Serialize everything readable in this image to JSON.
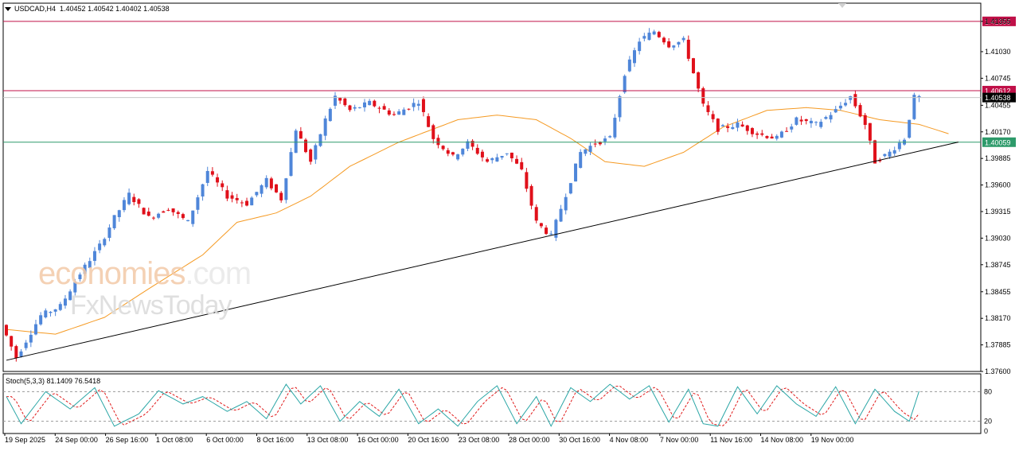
{
  "header": {
    "symbol": "USDCAD,H4",
    "ohlc": "1.40452 1.40542 1.40402 1.40538"
  },
  "watermark": {
    "line1_brand": "economies",
    "line1_suffix": ".com",
    "line2": "FxNewsToday"
  },
  "oscillator": {
    "label": "Stoch(5,3,3) 81.1409 76.5418",
    "levels": [
      80,
      20
    ],
    "axis_labels": [
      "80",
      "20",
      "0"
    ]
  },
  "colors": {
    "bull": "#4f86d9",
    "bear": "#e0101a",
    "ma": "#f59a23",
    "resistance": "#c01048",
    "support": "#2d9a6a",
    "trendline": "#000000",
    "stoch_main": "#2aa6a6",
    "stoch_signal": "#e01a1a",
    "current_price_tag": "#000000"
  },
  "chart_data": {
    "type": "candlestick",
    "symbol": "USDCAD",
    "timeframe": "H4",
    "ylim": [
      1.376,
      1.4155
    ],
    "y_ticks": [
      "1.41355",
      "1.41030",
      "1.40745",
      "1.40455",
      "1.40170",
      "1.39885",
      "1.39600",
      "1.39315",
      "1.39030",
      "1.38745",
      "1.38455",
      "1.38170",
      "1.37885",
      "1.37600"
    ],
    "x_tick_labels": [
      "19 Sep 2025",
      "24 Sep 00:00",
      "26 Sep 16:00",
      "1 Oct 08:00",
      "6 Oct 00:00",
      "8 Oct 16:00",
      "13 Oct 08:00",
      "16 Oct 00:00",
      "20 Oct 16:00",
      "23 Oct 08:00",
      "28 Oct 00:00",
      "30 Oct 16:00",
      "4 Nov 08:00",
      "7 Nov 00:00",
      "11 Nov 16:00",
      "14 Nov 08:00",
      "19 Nov 00:00"
    ],
    "horizontal_levels": [
      {
        "price": 1.41355,
        "label": "1.41355",
        "role": "resistance"
      },
      {
        "price": 1.40612,
        "label": "1.40612",
        "role": "resistance"
      },
      {
        "price": 1.40538,
        "label": "1.40538",
        "role": "current"
      },
      {
        "price": 1.40059,
        "label": "1.40059",
        "role": "support"
      }
    ],
    "trendline": {
      "from_index": 0,
      "from_price": 1.3772,
      "to_index": 194,
      "to_price": 1.4006
    },
    "moving_average_path": [
      [
        0,
        1.3805
      ],
      [
        10,
        1.38
      ],
      [
        20,
        1.3818
      ],
      [
        30,
        1.3852
      ],
      [
        40,
        1.3885
      ],
      [
        47,
        1.392
      ],
      [
        55,
        1.393
      ],
      [
        62,
        1.3948
      ],
      [
        70,
        1.398
      ],
      [
        80,
        1.4006
      ],
      [
        92,
        1.403
      ],
      [
        100,
        1.4035
      ],
      [
        108,
        1.403
      ],
      [
        115,
        1.401
      ],
      [
        122,
        1.3985
      ],
      [
        130,
        1.398
      ],
      [
        138,
        1.3995
      ],
      [
        146,
        1.4022
      ],
      [
        155,
        1.404
      ],
      [
        163,
        1.4043
      ],
      [
        170,
        1.404
      ],
      [
        178,
        1.403
      ],
      [
        186,
        1.4025
      ],
      [
        192,
        1.4015
      ]
    ],
    "price_path": [
      [
        0,
        1.381
      ],
      [
        3,
        1.3775
      ],
      [
        8,
        1.382
      ],
      [
        12,
        1.383
      ],
      [
        16,
        1.3865
      ],
      [
        20,
        1.3895
      ],
      [
        23,
        1.3925
      ],
      [
        26,
        1.395
      ],
      [
        30,
        1.3925
      ],
      [
        34,
        1.3935
      ],
      [
        38,
        1.392
      ],
      [
        42,
        1.3975
      ],
      [
        46,
        1.3948
      ],
      [
        50,
        1.394
      ],
      [
        54,
        1.3965
      ],
      [
        57,
        1.3945
      ],
      [
        60,
        1.402
      ],
      [
        63,
        1.3985
      ],
      [
        66,
        1.403
      ],
      [
        68,
        1.4055
      ],
      [
        71,
        1.404
      ],
      [
        75,
        1.4048
      ],
      [
        80,
        1.4035
      ],
      [
        85,
        1.405
      ],
      [
        88,
        1.401
      ],
      [
        92,
        1.399
      ],
      [
        95,
        1.4005
      ],
      [
        99,
        1.3985
      ],
      [
        103,
        1.3995
      ],
      [
        106,
        1.3975
      ],
      [
        109,
        1.392
      ],
      [
        112,
        1.3905
      ],
      [
        115,
        1.395
      ],
      [
        118,
        1.3995
      ],
      [
        121,
        1.4005
      ],
      [
        124,
        1.401
      ],
      [
        127,
        1.408
      ],
      [
        130,
        1.4115
      ],
      [
        133,
        1.4125
      ],
      [
        136,
        1.411
      ],
      [
        139,
        1.4115
      ],
      [
        141,
        1.408
      ],
      [
        143,
        1.4045
      ],
      [
        146,
        1.402
      ],
      [
        150,
        1.4025
      ],
      [
        154,
        1.4015
      ],
      [
        158,
        1.401
      ],
      [
        162,
        1.403
      ],
      [
        166,
        1.4025
      ],
      [
        170,
        1.404
      ],
      [
        173,
        1.4055
      ],
      [
        176,
        1.4025
      ],
      [
        178,
        1.3985
      ],
      [
        181,
        1.3995
      ],
      [
        184,
        1.401
      ],
      [
        186,
        1.4054
      ]
    ],
    "stochastic": {
      "k_period": 5,
      "d_period": 3,
      "slowing": 3,
      "main_last": 81.1409,
      "signal_last": 76.5418,
      "path": [
        [
          0,
          70
        ],
        [
          3,
          15
        ],
        [
          8,
          80
        ],
        [
          13,
          45
        ],
        [
          18,
          88
        ],
        [
          22,
          10
        ],
        [
          27,
          35
        ],
        [
          31,
          82
        ],
        [
          36,
          55
        ],
        [
          40,
          70
        ],
        [
          45,
          40
        ],
        [
          49,
          60
        ],
        [
          53,
          25
        ],
        [
          57,
          95
        ],
        [
          60,
          55
        ],
        [
          64,
          92
        ],
        [
          68,
          20
        ],
        [
          72,
          60
        ],
        [
          76,
          30
        ],
        [
          80,
          85
        ],
        [
          84,
          15
        ],
        [
          88,
          45
        ],
        [
          92,
          10
        ],
        [
          96,
          60
        ],
        [
          100,
          92
        ],
        [
          104,
          15
        ],
        [
          108,
          70
        ],
        [
          111,
          10
        ],
        [
          115,
          88
        ],
        [
          119,
          60
        ],
        [
          123,
          95
        ],
        [
          127,
          65
        ],
        [
          131,
          92
        ],
        [
          135,
          18
        ],
        [
          139,
          85
        ],
        [
          142,
          15
        ],
        [
          145,
          10
        ],
        [
          149,
          90
        ],
        [
          153,
          35
        ],
        [
          157,
          92
        ],
        [
          161,
          55
        ],
        [
          165,
          30
        ],
        [
          169,
          90
        ],
        [
          173,
          15
        ],
        [
          177,
          85
        ],
        [
          181,
          40
        ],
        [
          184,
          20
        ],
        [
          186,
          81
        ]
      ]
    }
  }
}
